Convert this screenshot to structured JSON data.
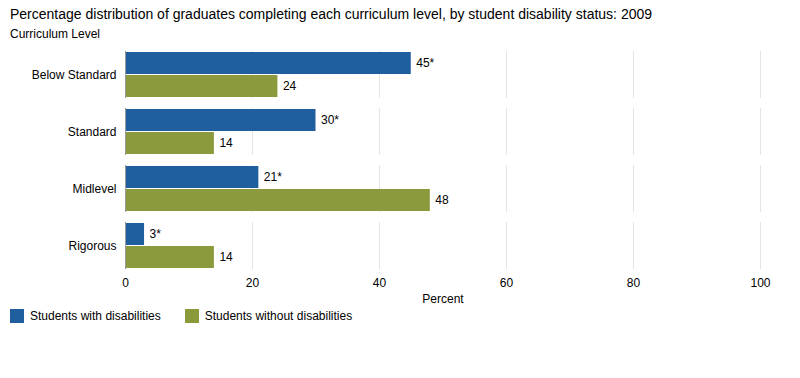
{
  "chart_data": {
    "type": "bar",
    "orientation": "horizontal",
    "title": "Percentage distribution of graduates completing each curriculum level, by student disability status: 2009",
    "ylabel": "Curriculum Level",
    "xlabel": "Percent",
    "categories": [
      "Below Standard",
      "Standard",
      "Midlevel",
      "Rigorous"
    ],
    "series": [
      {
        "name": "Students with disabilities",
        "color": "#1F5F9E",
        "values": [
          45,
          30,
          21,
          3
        ],
        "value_labels": [
          "45*",
          "30*",
          "21*",
          "3*"
        ]
      },
      {
        "name": "Students without disabilities",
        "color": "#8B9A3C",
        "values": [
          24,
          14,
          48,
          14
        ]
      }
    ],
    "xlim": [
      0,
      100
    ],
    "xticks": [
      0,
      20,
      40,
      60,
      80,
      100
    ],
    "grid": true,
    "legend": "lower left",
    "data_labels": true
  }
}
